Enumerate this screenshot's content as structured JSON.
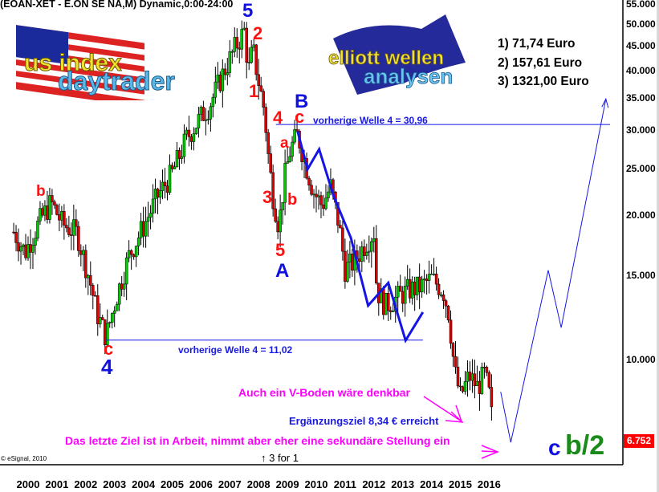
{
  "header": {
    "title": "(EOAN-XET - E.ON SE NA,M) Dynamic,0:00-24:00"
  },
  "logos": {
    "left": {
      "line1": "us index",
      "line2": "daytrader"
    },
    "right": {
      "line1": "elliott wellen",
      "line2": "analysen"
    }
  },
  "targets": [
    "1) 71,74 Euro",
    "2) 157,61 Euro",
    "3) 1321,00 Euro"
  ],
  "annotations": {
    "prev_wave4_high": "vorherige Welle 4 = 30,96",
    "prev_wave4_low": "vorherige Welle 4 = 11,02",
    "v_bottom": "Auch ein V-Boden wäre denkbar",
    "extension_target": "Ergänzungsziel 8,34 € erreicht",
    "last_target": "Das letzte Ziel ist in Arbeit, nimmt aber eher eine sekundäre Stellung ein",
    "split": "↑ 3 for 1",
    "copyright": "© eSignal, 2010",
    "final_label_c": "c",
    "final_label_b2": "b/2"
  },
  "wave_labels": {
    "w5_top": "5",
    "w2": "2",
    "w1": "1",
    "w4": "4",
    "w3": "3",
    "w5_low": "5",
    "A": "A",
    "B": "B",
    "c_top": "c",
    "a": "a",
    "b": "b",
    "b_2001": "b",
    "c_2003": "c",
    "w4_2003": "4"
  },
  "colors": {
    "up": "#00cc00",
    "down": "#dd0000",
    "wave_line": "#1414e6",
    "labels_red": "#ff1010",
    "labels_blue": "#1010e0",
    "annotation_magenta": "#ff00ff",
    "last_price_bg": "#ff0000"
  },
  "chart_data": {
    "type": "candlestick",
    "title": "(EOAN-XET - E.ON SE NA,M) Dynamic,0:00-24:00",
    "interval": "monthly",
    "y_scale": "log",
    "ylim": [
      6.2,
      56
    ],
    "yticks": [
      "55.000",
      "50.000",
      "45.000",
      "40.000",
      "35.000",
      "30.000",
      "25.000",
      "20.000",
      "15.000",
      "10.000"
    ],
    "ytick_values": [
      55,
      50,
      45,
      40,
      35,
      30,
      25,
      20,
      15,
      10
    ],
    "xticks": [
      "2000",
      "2001",
      "2002",
      "2003",
      "2004",
      "2005",
      "2006",
      "2007",
      "2008",
      "2009",
      "2010",
      "2011",
      "2012",
      "2013",
      "2014",
      "2015",
      "2016"
    ],
    "last_price": "6.752",
    "grid": false,
    "approx_close_path": [
      [
        2000.0,
        18.5
      ],
      [
        2000.4,
        16.8
      ],
      [
        2000.9,
        19.5
      ],
      [
        2001.3,
        21.3
      ],
      [
        2001.7,
        19.2
      ],
      [
        2002.2,
        18.4
      ],
      [
        2002.6,
        15.0
      ],
      [
        2002.9,
        12.5
      ],
      [
        2003.2,
        11.2
      ],
      [
        2003.6,
        13.8
      ],
      [
        2004.0,
        16.5
      ],
      [
        2004.5,
        19.0
      ],
      [
        2005.0,
        22.0
      ],
      [
        2005.5,
        24.5
      ],
      [
        2006.0,
        29.0
      ],
      [
        2006.4,
        31.5
      ],
      [
        2006.8,
        34.0
      ],
      [
        2007.3,
        40.0
      ],
      [
        2007.7,
        45.0
      ],
      [
        2008.0,
        48.5
      ],
      [
        2008.15,
        40.0
      ],
      [
        2008.3,
        44.5
      ],
      [
        2008.5,
        38.0
      ],
      [
        2008.7,
        33.0
      ],
      [
        2008.85,
        26.0
      ],
      [
        2009.0,
        22.0
      ],
      [
        2009.2,
        19.0
      ],
      [
        2009.4,
        24.0
      ],
      [
        2009.6,
        27.5
      ],
      [
        2009.85,
        29.5
      ],
      [
        2010.1,
        26.0
      ],
      [
        2010.4,
        22.5
      ],
      [
        2010.7,
        21.0
      ],
      [
        2011.0,
        23.0
      ],
      [
        2011.3,
        19.0
      ],
      [
        2011.5,
        15.5
      ],
      [
        2011.8,
        16.0
      ],
      [
        2012.2,
        17.5
      ],
      [
        2012.5,
        18.5
      ],
      [
        2012.6,
        14.0
      ],
      [
        2012.9,
        13.0
      ],
      [
        2013.3,
        13.5
      ],
      [
        2013.7,
        14.0
      ],
      [
        2014.1,
        14.2
      ],
      [
        2014.5,
        14.8
      ],
      [
        2014.9,
        14.0
      ],
      [
        2015.1,
        12.5
      ],
      [
        2015.3,
        9.5
      ],
      [
        2015.5,
        8.4
      ],
      [
        2015.8,
        9.3
      ],
      [
        2016.1,
        8.8
      ],
      [
        2016.35,
        9.4
      ],
      [
        2016.55,
        8.2
      ],
      [
        2016.65,
        6.75
      ]
    ],
    "wave_path": [
      [
        2009.85,
        30.0
      ],
      [
        2010.2,
        25.0
      ],
      [
        2010.6,
        27.5
      ],
      [
        2011.1,
        22.0
      ],
      [
        2011.7,
        18.0
      ],
      [
        2012.3,
        13.0
      ],
      [
        2013.0,
        14.5
      ],
      [
        2013.6,
        11.0
      ],
      [
        2014.2,
        12.6
      ]
    ],
    "projection_path": [
      [
        2016.9,
        8.6
      ],
      [
        2017.25,
        6.75
      ],
      [
        2018.55,
        15.4
      ],
      [
        2019.0,
        11.7
      ],
      [
        2020.55,
        35.0
      ]
    ],
    "hlines": [
      {
        "label": "vorherige Welle 4 = 30,96",
        "value": 30.96
      },
      {
        "label": "vorherige Welle 4 = 11,02",
        "value": 11.02
      }
    ]
  }
}
